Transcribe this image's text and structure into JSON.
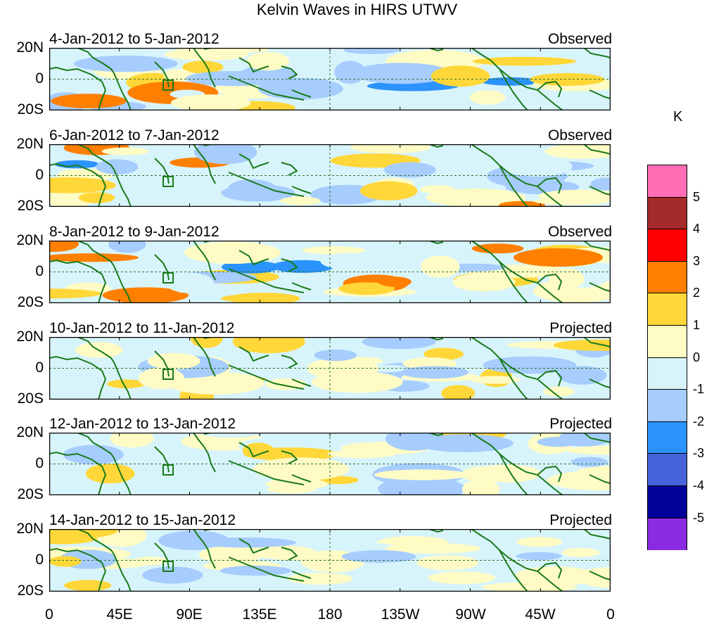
{
  "title": "Kelvin Waves in HIRS UTWV",
  "panels": [
    {
      "dates": "4-Jan-2012 to 5-Jan-2012",
      "status": "Observed"
    },
    {
      "dates": "6-Jan-2012 to 7-Jan-2012",
      "status": "Observed"
    },
    {
      "dates": "8-Jan-2012 to 9-Jan-2012",
      "status": "Observed"
    },
    {
      "dates": "10-Jan-2012 to 11-Jan-2012",
      "status": "Projected"
    },
    {
      "dates": "12-Jan-2012 to 13-Jan-2012",
      "status": "Projected"
    },
    {
      "dates": "14-Jan-2012 to 15-Jan-2012",
      "status": "Projected"
    }
  ],
  "lat_labels": [
    "20N",
    "0",
    "20S"
  ],
  "lon_labels": [
    "0",
    "45E",
    "90E",
    "135E",
    "180",
    "135W",
    "90W",
    "45W",
    "0"
  ],
  "colorbar": {
    "unit": "K",
    "labels": [
      "5",
      "4",
      "3",
      "2",
      "1",
      "0",
      "-1",
      "-2",
      "-3",
      "-4",
      "-5"
    ],
    "colors": [
      "#ff6eb4",
      "#a52a2a",
      "#ff0000",
      "#ff7f00",
      "#ffd738",
      "#fefbc5",
      "#d8f4fb",
      "#a6cdfe",
      "#2b93fd",
      "#4763dc",
      "#010199",
      "#8a2be2"
    ]
  }
}
